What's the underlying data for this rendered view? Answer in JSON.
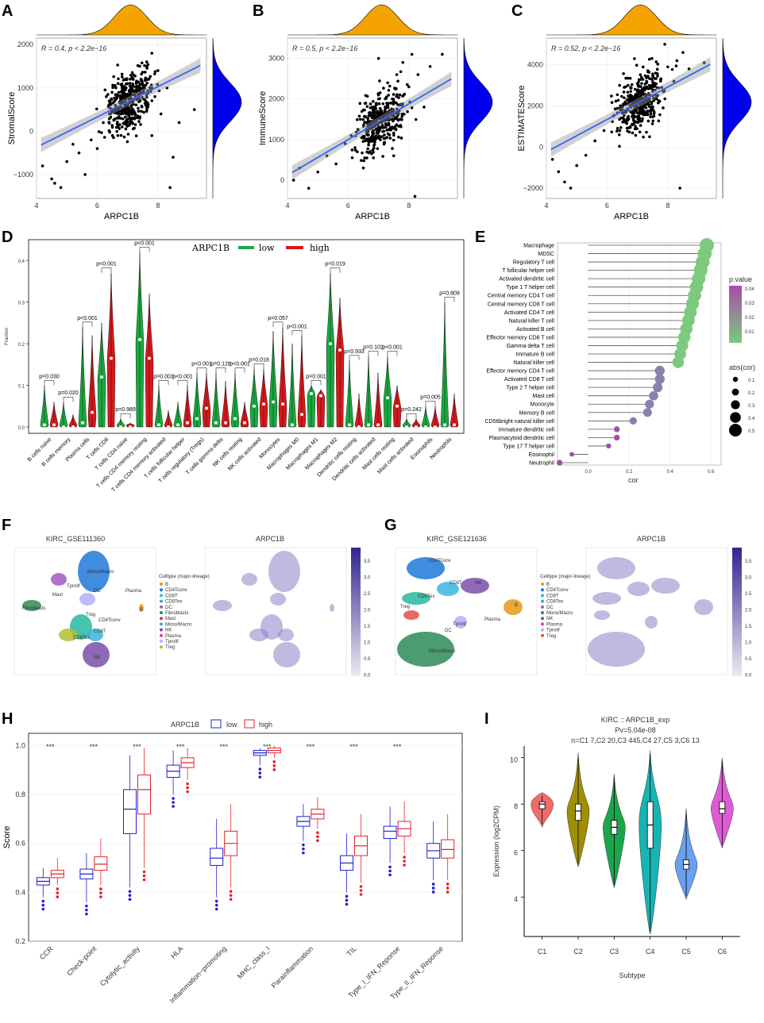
{
  "panel_labels": [
    "A",
    "B",
    "C",
    "D",
    "E",
    "F",
    "G",
    "H",
    "I"
  ],
  "chart_data": [
    {
      "panel": "A",
      "type": "scatter",
      "xlabel": "ARPC1B",
      "ylabel": "StromalScore",
      "annotation": "R = 0.4, p < 2.2e−16",
      "xlim": [
        4,
        9.6
      ],
      "ylim": [
        -1550,
        2150
      ],
      "x_ticks": [
        "4",
        "6",
        "8"
      ],
      "y_ticks": [
        "−1000",
        "0",
        "1000",
        "2000"
      ],
      "fit": {
        "intercept": -1770,
        "slope": 350
      },
      "points": [
        [
          4.2,
          -800
        ],
        [
          4.5,
          -1100
        ],
        [
          4.6,
          -1200
        ],
        [
          4.8,
          -1300
        ],
        [
          5.0,
          -700
        ],
        [
          5.2,
          -300
        ],
        [
          5.4,
          -500
        ],
        [
          5.6,
          -1000
        ],
        [
          5.8,
          -200
        ],
        [
          6.0,
          -400
        ],
        [
          6.2,
          200
        ],
        [
          6.4,
          400
        ],
        [
          6.5,
          -100
        ],
        [
          6.6,
          600
        ],
        [
          6.7,
          300
        ],
        [
          6.8,
          900
        ],
        [
          6.9,
          500
        ],
        [
          7.0,
          1100
        ],
        [
          7.1,
          700
        ],
        [
          7.2,
          1300
        ],
        [
          7.3,
          900
        ],
        [
          7.4,
          1500
        ],
        [
          7.5,
          1000
        ],
        [
          7.6,
          600
        ],
        [
          7.7,
          1200
        ],
        [
          7.8,
          1800
        ],
        [
          7.9,
          800
        ],
        [
          8.0,
          1400
        ],
        [
          8.1,
          400
        ],
        [
          8.3,
          1000
        ],
        [
          8.5,
          -600
        ],
        [
          8.7,
          200
        ],
        [
          9.2,
          500
        ],
        [
          6.3,
          800
        ],
        [
          6.9,
          1200
        ],
        [
          7.4,
          300
        ],
        [
          7.8,
          -100
        ],
        [
          8.4,
          -1300
        ]
      ]
    },
    {
      "panel": "B",
      "type": "scatter",
      "xlabel": "ARPC1B",
      "ylabel": "ImmuneScore",
      "annotation": "R = 0.5, p < 2.2e−16",
      "xlim": [
        4,
        9.6
      ],
      "ylim": [
        -450,
        3500
      ],
      "x_ticks": [
        "4",
        "6",
        "8"
      ],
      "y_ticks": [
        "0",
        "1000",
        "2000",
        "3000"
      ],
      "fit": {
        "intercept": -1640,
        "slope": 440
      },
      "points": [
        [
          4.2,
          0
        ],
        [
          4.4,
          300
        ],
        [
          4.7,
          -200
        ],
        [
          5.0,
          200
        ],
        [
          5.3,
          600
        ],
        [
          5.6,
          400
        ],
        [
          5.9,
          900
        ],
        [
          6.1,
          1100
        ],
        [
          6.3,
          700
        ],
        [
          6.4,
          1500
        ],
        [
          6.6,
          1200
        ],
        [
          6.8,
          1800
        ],
        [
          6.9,
          1400
        ],
        [
          7.0,
          2100
        ],
        [
          7.2,
          1700
        ],
        [
          7.3,
          2400
        ],
        [
          7.4,
          1900
        ],
        [
          7.6,
          2600
        ],
        [
          7.7,
          2100
        ],
        [
          7.8,
          2900
        ],
        [
          8.0,
          2300
        ],
        [
          8.1,
          3100
        ],
        [
          8.3,
          2600
        ],
        [
          8.5,
          1800
        ],
        [
          8.7,
          2800
        ],
        [
          9.1,
          3100
        ],
        [
          7.5,
          600
        ],
        [
          6.5,
          300
        ],
        [
          8.2,
          -400
        ],
        [
          7.0,
          3000
        ]
      ]
    },
    {
      "panel": "C",
      "type": "scatter",
      "xlabel": "ARPC1B",
      "ylabel": "ESTIMATEScore",
      "annotation": "R = 0.52, p < 2.2e−16",
      "xlim": [
        4,
        9.6
      ],
      "ylim": [
        -2500,
        5300
      ],
      "x_ticks": [
        "4",
        "6",
        "8"
      ],
      "y_ticks": [
        "−2000",
        "0",
        "2000",
        "4000"
      ],
      "fit": {
        "intercept": -3400,
        "slope": 790
      },
      "points": [
        [
          4.2,
          -600
        ],
        [
          4.4,
          -1200
        ],
        [
          4.6,
          -1700
        ],
        [
          4.8,
          -2000
        ],
        [
          5.0,
          -900
        ],
        [
          5.3,
          -400
        ],
        [
          5.6,
          300
        ],
        [
          5.9,
          800
        ],
        [
          6.2,
          1500
        ],
        [
          6.4,
          600
        ],
        [
          6.6,
          2200
        ],
        [
          6.8,
          1700
        ],
        [
          7.0,
          2700
        ],
        [
          7.1,
          2000
        ],
        [
          7.3,
          3200
        ],
        [
          7.5,
          2500
        ],
        [
          7.6,
          3600
        ],
        [
          7.8,
          2900
        ],
        [
          8.0,
          3900
        ],
        [
          8.2,
          3200
        ],
        [
          8.3,
          4200
        ],
        [
          8.5,
          4600
        ],
        [
          8.7,
          3800
        ],
        [
          9.2,
          4100
        ],
        [
          7.4,
          500
        ],
        [
          8.4,
          -2000
        ],
        [
          7.9,
          5000
        ],
        [
          6.9,
          4300
        ]
      ]
    },
    {
      "panel": "D",
      "type": "violin",
      "ylabel": "Fraction",
      "ylim": [
        0,
        0.45
      ],
      "y_ticks": [
        "0.0",
        "0.1",
        "0.2",
        "0.3",
        "0.4"
      ],
      "legend_title": "ARPC1B",
      "legend": [
        "low",
        "high"
      ],
      "colors": {
        "low": "#1aa93f",
        "high": "#d7191c"
      },
      "categories": [
        "B cells naive",
        "B cells memory",
        "Plasma cells",
        "T cells CD8",
        "T cells CD4 naive",
        "T cells CD4 memory resting",
        "T cells CD4 memory activated",
        "T cells follicular helper",
        "T cells regulatory (Tregs)",
        "T cells gamma delta",
        "NK cells resting",
        "NK cells activated",
        "Monocytes",
        "Macrophages M0",
        "Macrophages M1",
        "Macrophages M2",
        "Dendritic cells resting",
        "Dendritic cells activated",
        "Mast cells resting",
        "Mast cells activated",
        "Eosinophils",
        "Neutrophils"
      ],
      "pvalues": [
        "p=0.030",
        "p=0.020",
        "p<0.001",
        "p<0.001",
        "p=0.989",
        "p<0.001",
        "p=0.003",
        "p<0.001",
        "p<0.001",
        "p=0.128",
        "p<0.001",
        "p=0.018",
        "p=0.057",
        "p<0.001",
        "p=0.001",
        "p=0.019",
        "p=0.933",
        "p=0.102",
        "p<0.001",
        "p=0.242",
        "p=0.005",
        "p=0.809"
      ],
      "low_max": [
        0.1,
        0.06,
        0.24,
        0.25,
        0.02,
        0.42,
        0.1,
        0.06,
        0.13,
        0.13,
        0.13,
        0.14,
        0.23,
        0.2,
        0.1,
        0.37,
        0.16,
        0.17,
        0.17,
        0.02,
        0.05,
        0.3
      ],
      "high_max": [
        0.06,
        0.03,
        0.22,
        0.37,
        0.01,
        0.32,
        0.04,
        0.1,
        0.13,
        0.11,
        0.06,
        0.14,
        0.24,
        0.22,
        0.09,
        0.31,
        0.08,
        0.13,
        0.1,
        0.02,
        0.05,
        0.08
      ],
      "low_med": [
        0.005,
        0.0,
        0.01,
        0.12,
        0.0,
        0.21,
        0.005,
        0.005,
        0.02,
        0.01,
        0.02,
        0.05,
        0.06,
        0.005,
        0.08,
        0.2,
        0.005,
        0.005,
        0.07,
        0.0,
        0.0,
        0.005
      ],
      "high_med": [
        0.005,
        0.0,
        0.035,
        0.165,
        0.0,
        0.165,
        0.0,
        0.01,
        0.045,
        0.01,
        0.01,
        0.055,
        0.055,
        0.03,
        0.075,
        0.185,
        0.0,
        0.005,
        0.05,
        0.0,
        0.0,
        0.005
      ]
    },
    {
      "panel": "E",
      "type": "lollipop",
      "xlabel": "cor",
      "xlim": [
        -0.15,
        0.65
      ],
      "x_ticks": [
        "0.0",
        "0.2",
        "0.4",
        "0.6"
      ],
      "legend_title_color": "p.value",
      "color_ticks": [
        "0.04",
        "0.03",
        "0.02",
        "0.01"
      ],
      "legend_title_size": "abs(cor)",
      "size_ticks": [
        "0.1",
        "0.2",
        "0.3",
        "0.4",
        "0.5"
      ],
      "categories": [
        "Macrophage",
        "MDSC",
        "Regulatory T cell",
        "T follicular helper cell",
        "Activated dendritic cell",
        "Type 1 T helper cell",
        "Central memory CD4 T cell",
        "Central memory CD8 T cell",
        "Activated CD4 T cell",
        "Natural killer T cell",
        "Activated B cell",
        "Effector memory CD8 T cell",
        "Gamma delta T cell",
        "Immature  B cell",
        "Natural killer cell",
        "Effector memory CD4 T cell",
        "Activated CD8 T cell",
        "Type 2 T helper cell",
        "Mast cell",
        "Monocyte",
        "Memory B cell",
        "CD56bright natural killer cell",
        "Immature dendritic cell",
        "Plasmacytoid dendritic cell",
        "Type 17 T helper cell",
        "Eosinophil",
        "Neutrophil"
      ],
      "values": [
        0.58,
        0.57,
        0.56,
        0.55,
        0.54,
        0.53,
        0.52,
        0.51,
        0.5,
        0.49,
        0.48,
        0.47,
        0.46,
        0.45,
        0.44,
        0.35,
        0.35,
        0.34,
        0.32,
        0.3,
        0.29,
        0.22,
        0.14,
        0.14,
        0.1,
        -0.08,
        -0.14
      ]
    },
    {
      "panel": "H",
      "type": "boxplot",
      "ylabel": "Score",
      "ylim": [
        0.2,
        1.05
      ],
      "y_ticks": [
        "0.2",
        "0.4",
        "0.6",
        "0.8",
        "1.0"
      ],
      "legend_title": "ARPC1B",
      "legend": [
        "low",
        "high"
      ],
      "colors": {
        "low": "#1f1fd0",
        "high": "#e0242a"
      },
      "categories": [
        "CCR",
        "Check-point",
        "Cytolytic_activity",
        "HLA",
        "Inflammation−promoting",
        "MHC_class_I",
        "Parainflammation",
        "TIL",
        "Type_I_IFN_Reponse",
        "Type_II_IFN_Reponse"
      ],
      "signif": [
        "***",
        "***",
        "***",
        "***",
        "***",
        "***",
        "***",
        "***",
        "***",
        ""
      ],
      "low": [
        [
          0.38,
          0.43,
          0.445,
          0.46,
          0.5
        ],
        [
          0.36,
          0.455,
          0.475,
          0.495,
          0.56
        ],
        [
          0.42,
          0.64,
          0.74,
          0.82,
          0.96
        ],
        [
          0.8,
          0.87,
          0.895,
          0.92,
          0.98
        ],
        [
          0.38,
          0.51,
          0.54,
          0.58,
          0.7
        ],
        [
          0.92,
          0.96,
          0.97,
          0.98,
          0.99
        ],
        [
          0.61,
          0.67,
          0.69,
          0.71,
          0.76
        ],
        [
          0.4,
          0.49,
          0.52,
          0.55,
          0.64
        ],
        [
          0.52,
          0.62,
          0.65,
          0.67,
          0.75
        ],
        [
          0.45,
          0.54,
          0.57,
          0.6,
          0.69
        ]
      ],
      "high": [
        [
          0.43,
          0.46,
          0.475,
          0.49,
          0.54
        ],
        [
          0.43,
          0.49,
          0.515,
          0.545,
          0.62
        ],
        [
          0.5,
          0.72,
          0.82,
          0.88,
          0.99
        ],
        [
          0.86,
          0.91,
          0.93,
          0.95,
          0.99
        ],
        [
          0.42,
          0.55,
          0.6,
          0.65,
          0.76
        ],
        [
          0.95,
          0.97,
          0.98,
          0.99,
          1.0
        ],
        [
          0.66,
          0.7,
          0.72,
          0.74,
          0.79
        ],
        [
          0.44,
          0.55,
          0.59,
          0.63,
          0.72
        ],
        [
          0.56,
          0.63,
          0.66,
          0.69,
          0.77
        ],
        [
          0.45,
          0.54,
          0.575,
          0.615,
          0.72
        ]
      ]
    },
    {
      "panel": "I",
      "type": "violin",
      "title": "KIRC :: ARPC1B_exp",
      "subtitle1": "Pv=5.04e-08",
      "subtitle2": "n=C1 7,C2 20,C3 445,C4 27,C5 3,C6 13",
      "xlabel": "Subtype",
      "ylabel": "Expression (log2CPM)",
      "ylim": [
        2.3,
        10.5
      ],
      "y_ticks": [
        "4",
        "6",
        "8",
        "10"
      ],
      "categories": [
        "C1",
        "C2",
        "C3",
        "C4",
        "C5",
        "C6"
      ],
      "colors": [
        "#f26a6a",
        "#a09000",
        "#1aa64a",
        "#17b4b4",
        "#6aa0f0",
        "#e05ad8"
      ],
      "min": [
        7.0,
        5.3,
        4.4,
        2.4,
        3.9,
        6.1
      ],
      "max": [
        8.5,
        10.2,
        9.3,
        10.3,
        7.8,
        10.0
      ],
      "median": [
        8.0,
        7.7,
        7.0,
        7.1,
        5.4,
        7.8
      ],
      "q1": [
        7.8,
        7.3,
        6.7,
        6.1,
        5.2,
        7.6
      ],
      "q3": [
        8.1,
        8.0,
        7.3,
        8.1,
        5.6,
        8.1
      ]
    }
  ],
  "umap": {
    "F": {
      "title_left": "KIRC_GSE111360",
      "title_right": "ARPC1B",
      "legend_title": "Celltype (major-lineage)",
      "legend": [
        "B",
        "CD4Tconv",
        "CD8T",
        "CD8Tex",
        "DC",
        "Fibroblasts",
        "Mast",
        "Mono/Macro",
        "NK",
        "Plasma",
        "Tprolif",
        "Treg"
      ],
      "cluster_labels": [
        "Mono/Macro",
        "Tprolif",
        "DC",
        "Mast",
        "Plasma",
        "B",
        "Fibroblasts",
        "Treg",
        "CD4Tconv",
        "CD8T",
        "CD8Tex",
        "NK"
      ],
      "colorbar_ticks": [
        "3.5",
        "3.0",
        "2.5",
        "2.0",
        "1.5",
        "1.0",
        "0.5",
        "0.0"
      ]
    },
    "G": {
      "title_left": "KIRC_GSE121636",
      "title_right": "ARPC1B",
      "legend_title": "Celltype (major-lineage)",
      "legend": [
        "B",
        "CD4Tconv",
        "CD8T",
        "CD8Tex",
        "DC",
        "Mono/Macro",
        "NK",
        "Plasma",
        "Tprolif",
        "Treg"
      ],
      "cluster_labels": [
        "CD4Tconv",
        "CD8T",
        "NK",
        "CD8Tex",
        "Treg",
        "B",
        "Tprolif",
        "Plasma",
        "DC",
        "Mono/Macro"
      ],
      "colorbar_ticks": [
        "3.5",
        "3.0",
        "2.5",
        "2.0",
        "1.5",
        "1.0",
        "0.5",
        "0.0"
      ]
    },
    "colors_F": [
      "#e69a17",
      "#1f78d8",
      "#3ab6e0",
      "#27b9a0",
      "#a05cc0",
      "#2e8b57",
      "#c04050",
      "#4aa0d8",
      "#7a4fa8",
      "#e0409a",
      "#b0b0ff",
      "#b0c030"
    ],
    "colors_G": [
      "#e69a17",
      "#1f78d8",
      "#3ab6e0",
      "#27b9a0",
      "#a05cc0",
      "#2e8b57",
      "#7a4fa8",
      "#e0409a",
      "#b0b0ff",
      "#e05050"
    ]
  }
}
